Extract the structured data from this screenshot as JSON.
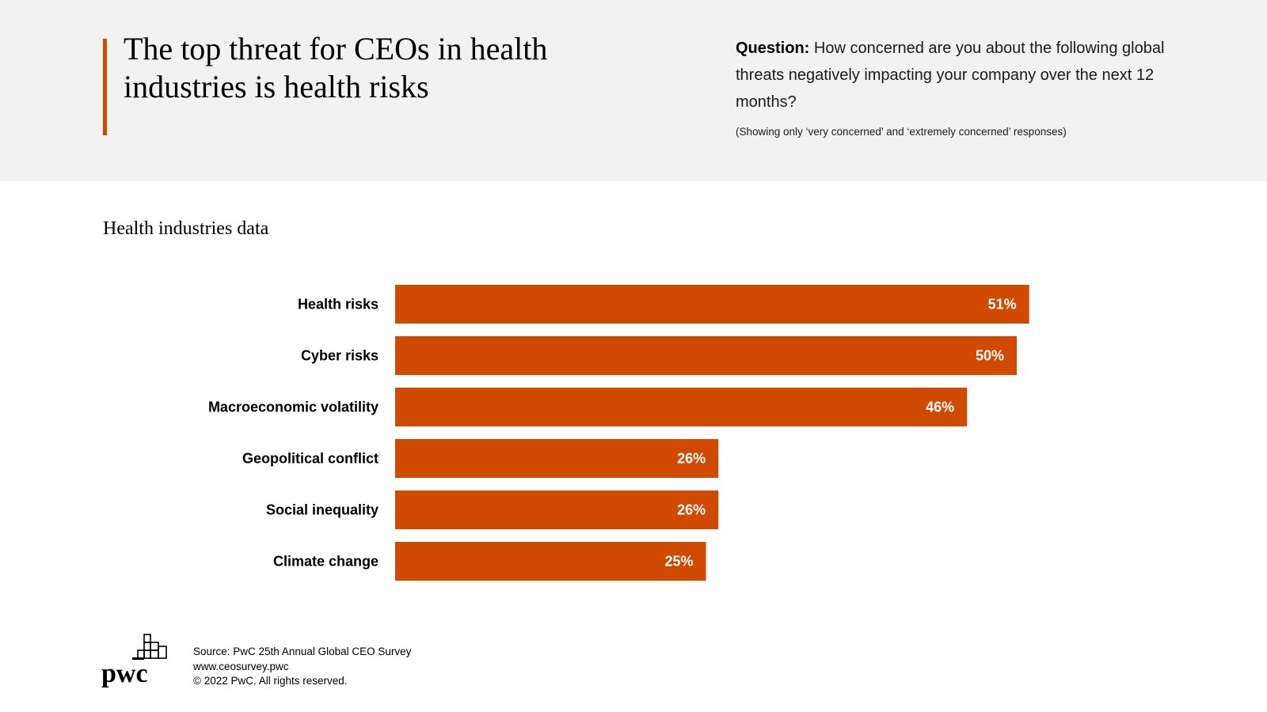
{
  "header": {
    "title": "The top threat for CEOs in health industries is health risks",
    "question_label": "Question:",
    "question_text": "How concerned are you about the following global threats negatively impacting your company over the next 12 months?",
    "question_note": "(Showing only ‘very concerned’ and ‘extremely concerned’ responses)"
  },
  "chart_data": {
    "type": "bar",
    "orientation": "horizontal",
    "title": "Health industries data",
    "categories": [
      "Health risks",
      "Cyber risks",
      "Macroeconomic volatility",
      "Geopolitical conflict",
      "Social inequality",
      "Climate change"
    ],
    "values": [
      51,
      50,
      46,
      26,
      26,
      25
    ],
    "value_labels": [
      "51%",
      "50%",
      "46%",
      "26%",
      "26%",
      "25%"
    ],
    "unit": "%",
    "xlim": [
      0,
      100
    ],
    "grid": false,
    "bar_color": "#d04a02"
  },
  "footer": {
    "logo_text": "pwc",
    "source": "Source: PwC 25th Annual Global CEO Survey",
    "url": "www.ceosurvey.pwc",
    "copyright": "© 2022 PwC. All rights reserved."
  },
  "colors": {
    "accent": "#d04a02",
    "header_background": "#f2f2f2"
  }
}
